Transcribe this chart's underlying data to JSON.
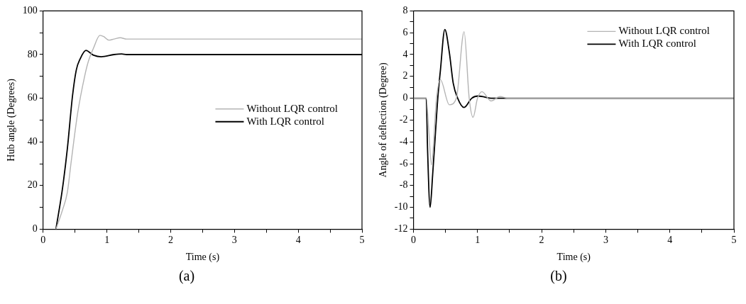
{
  "chart_data": [
    {
      "type": "line",
      "xlabel": "Time (s)",
      "ylabel": "Hub angle (Degrees)",
      "annotations": [
        "(a)"
      ],
      "legend": "center right",
      "grid": false,
      "marker": "none",
      "line_style": "solid",
      "xlim": [
        0,
        5
      ],
      "ylim": [
        0,
        100
      ],
      "xticks": [
        0,
        {
          "value": 0.5,
          "label": null
        },
        1,
        {
          "value": 1.5,
          "label": null
        },
        2,
        {
          "value": 2.5,
          "label": null
        },
        3,
        {
          "value": 3.5,
          "label": null
        },
        4,
        {
          "value": 4.5,
          "label": null
        },
        5
      ],
      "yticks": [
        0,
        {
          "value": 10,
          "label": null
        },
        20,
        {
          "value": 30,
          "label": null
        },
        40,
        {
          "value": 50,
          "label": null
        },
        60,
        {
          "value": 70,
          "label": null
        },
        80,
        {
          "value": 90,
          "label": null
        },
        100
      ],
      "series": [
        {
          "name": "Without LQR control",
          "color": "#b4b4b4",
          "x": [
            0.2,
            0.3,
            0.38,
            0.44,
            0.54,
            0.65,
            0.71,
            0.79,
            0.89,
            0.95,
            1.03,
            1.11,
            1.21,
            1.31,
            5
          ],
          "values": [
            0,
            8.5,
            17,
            31,
            53,
            70,
            77,
            83,
            88.8,
            88.2,
            86.6,
            87.1,
            87.7,
            87.1,
            87.1
          ]
        },
        {
          "name": "With LQR control",
          "color": "#000000",
          "x": [
            0.2,
            0.3,
            0.38,
            0.46,
            0.52,
            0.58,
            0.67,
            0.79,
            0.91,
            1.11,
            1.23,
            1.31,
            5
          ],
          "values": [
            0,
            18,
            37,
            61,
            73,
            78,
            81.9,
            79.7,
            79,
            80,
            80.3,
            80,
            80
          ]
        }
      ]
    },
    {
      "type": "line",
      "xlabel": "Time (s)",
      "ylabel": "Angle of deflection (Degree)",
      "annotations": [
        "(b)"
      ],
      "legend": "top right",
      "grid": false,
      "marker": "none",
      "line_style": "solid",
      "xlim": [
        0,
        5
      ],
      "ylim": [
        -12,
        8
      ],
      "xticks": [
        0,
        {
          "value": 0.5,
          "label": null
        },
        1,
        {
          "value": 1.5,
          "label": null
        },
        2,
        {
          "value": 2.5,
          "label": null
        },
        3,
        {
          "value": 3.5,
          "label": null
        },
        4,
        {
          "value": 4.5,
          "label": null
        },
        5
      ],
      "yticks": [
        -12,
        {
          "value": -11,
          "label": null
        },
        -10,
        {
          "value": -9,
          "label": null
        },
        -8,
        {
          "value": -7,
          "label": null
        },
        -6,
        {
          "value": -5,
          "label": null
        },
        -4,
        {
          "value": -3,
          "label": null
        },
        -2,
        {
          "value": -1,
          "label": null
        },
        0,
        {
          "value": 1,
          "label": null
        },
        2,
        {
          "value": 3,
          "label": null
        },
        4,
        {
          "value": 5,
          "label": null
        },
        6,
        {
          "value": 7,
          "label": null
        },
        8
      ],
      "series": [
        {
          "name": "Without LQR control",
          "color": "#b4b4b4",
          "x": [
            0,
            0.2,
            0.24,
            0.28,
            0.36,
            0.42,
            0.56,
            0.67,
            0.79,
            0.87,
            0.93,
            1.0,
            1.07,
            1.21,
            1.35,
            1.47,
            5
          ],
          "values": [
            0,
            0,
            -3,
            -6.1,
            0,
            1.7,
            -0.6,
            0,
            6.1,
            0,
            -1.75,
            0,
            0.6,
            -0.25,
            0.15,
            0,
            0
          ]
        },
        {
          "name": "With LQR control",
          "color": "#000000",
          "x": [
            0,
            0.2,
            0.22,
            0.26,
            0.3,
            0.34,
            0.38,
            0.42,
            0.49,
            0.56,
            0.62,
            0.69,
            0.79,
            0.91,
            1.01,
            1.23,
            5
          ],
          "values": [
            0,
            0,
            -4.6,
            -10,
            -7,
            -3.5,
            0,
            2.5,
            6.3,
            4.2,
            1.4,
            0,
            -0.85,
            0,
            0.2,
            0,
            0
          ]
        }
      ]
    }
  ]
}
